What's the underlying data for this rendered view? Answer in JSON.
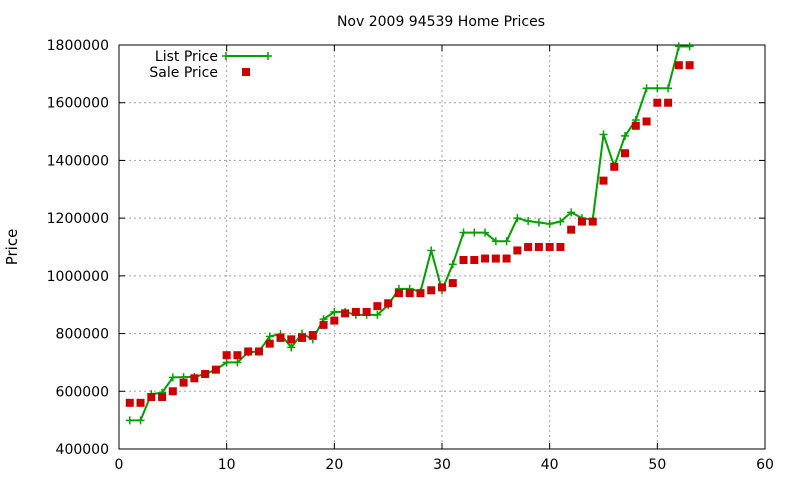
{
  "chart_data": {
    "type": "line",
    "title": "Nov 2009 94539 Home Prices",
    "xlabel": "",
    "ylabel": "Price",
    "xlim": [
      0,
      60
    ],
    "ylim": [
      400000,
      1800000
    ],
    "xticks": [
      0,
      10,
      20,
      30,
      40,
      50,
      60
    ],
    "yticks": [
      400000,
      600000,
      800000,
      1000000,
      1200000,
      1400000,
      1600000,
      1800000
    ],
    "grid": true,
    "legend": "top-left",
    "series": [
      {
        "name": "List Price",
        "style": "line+cross",
        "color": "#00a000",
        "x": [
          1,
          2,
          3,
          4,
          5,
          6,
          7,
          8,
          9,
          10,
          11,
          12,
          13,
          14,
          15,
          16,
          17,
          18,
          19,
          20,
          21,
          22,
          23,
          24,
          25,
          26,
          27,
          28,
          29,
          30,
          31,
          32,
          33,
          34,
          35,
          36,
          37,
          38,
          39,
          40,
          41,
          42,
          43,
          44,
          45,
          46,
          47,
          48,
          49,
          50,
          51,
          52,
          53
        ],
        "y": [
          499000,
          499000,
          590000,
          595000,
          648000,
          649000,
          650000,
          660000,
          675000,
          700000,
          700000,
          735000,
          738000,
          790000,
          798000,
          752000,
          800000,
          780000,
          850000,
          875000,
          875000,
          865000,
          865000,
          865000,
          899000,
          955000,
          955000,
          945000,
          1088000,
          950000,
          1040000,
          1150000,
          1150000,
          1150000,
          1120000,
          1120000,
          1200000,
          1190000,
          1185000,
          1180000,
          1188000,
          1220000,
          1200000,
          1195000,
          1490000,
          1380000,
          1485000,
          1540000,
          1650000,
          1650000,
          1650000,
          1795000,
          1795000
        ]
      },
      {
        "name": "Sale Price",
        "style": "square",
        "color": "#cc0000",
        "x": [
          1,
          2,
          3,
          4,
          5,
          6,
          7,
          8,
          9,
          10,
          11,
          12,
          13,
          14,
          15,
          16,
          17,
          18,
          19,
          20,
          21,
          22,
          23,
          24,
          25,
          26,
          27,
          28,
          29,
          30,
          31,
          32,
          33,
          34,
          35,
          36,
          37,
          38,
          39,
          40,
          41,
          42,
          43,
          44,
          45,
          46,
          47,
          48,
          49,
          50,
          51,
          52,
          53
        ],
        "y": [
          560000,
          560000,
          580000,
          580000,
          600000,
          630000,
          645000,
          660000,
          675000,
          725000,
          725000,
          738000,
          738000,
          765000,
          785000,
          780000,
          785000,
          795000,
          830000,
          845000,
          870000,
          875000,
          875000,
          895000,
          905000,
          940000,
          940000,
          940000,
          950000,
          960000,
          975000,
          1055000,
          1055000,
          1060000,
          1060000,
          1060000,
          1088000,
          1100000,
          1100000,
          1100000,
          1100000,
          1160000,
          1188000,
          1188000,
          1330000,
          1378000,
          1425000,
          1520000,
          1535000,
          1600000,
          1600000,
          1730000,
          1730000
        ]
      }
    ]
  }
}
